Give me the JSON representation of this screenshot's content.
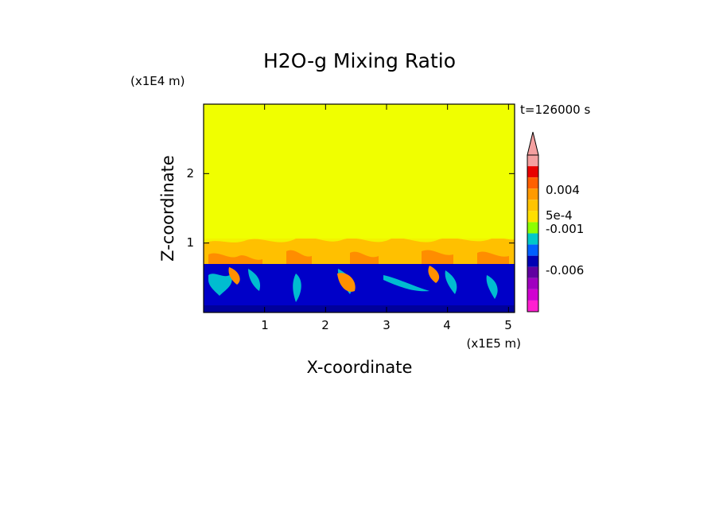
{
  "chart_data": {
    "type": "heatmap",
    "title": "H2O-g Mixing Ratio",
    "xlabel": "X-coordinate",
    "ylabel": "Z-coordinate",
    "x_unit": "(x1E5 m)",
    "y_unit": "(x1E4 m)",
    "time_label": "t=126000 s",
    "xlim": [
      0,
      5.1
    ],
    "ylim": [
      0,
      3.0
    ],
    "xticks": [
      "1",
      "2",
      "3",
      "4",
      "5"
    ],
    "yticks": [
      "1",
      "2"
    ],
    "xtick_values": [
      1,
      2,
      3,
      4,
      5
    ],
    "ytick_values": [
      1,
      2
    ],
    "colorbar": {
      "labels": [
        "0.004",
        "5e-4",
        "-0.001",
        "-0.006"
      ],
      "colors_top_to_bottom": [
        "#f4a0a0",
        "#e80000",
        "#ff6000",
        "#ff9a00",
        "#ffc400",
        "#ffe000",
        "#8cff00",
        "#00c8c8",
        "#0060ff",
        "#0000b4",
        "#6000a0",
        "#a000c0",
        "#d000d0",
        "#ff20d0"
      ]
    },
    "regions": [
      {
        "name": "upper layer",
        "z_range": [
          1.0,
          3.0
        ],
        "color": "#f0ff00"
      },
      {
        "name": "transition layer",
        "z_range": [
          0.7,
          1.0
        ],
        "color": "#ffc000"
      },
      {
        "name": "lower layer",
        "z_range": [
          0.0,
          0.7
        ],
        "color": "#0000c8"
      }
    ]
  }
}
